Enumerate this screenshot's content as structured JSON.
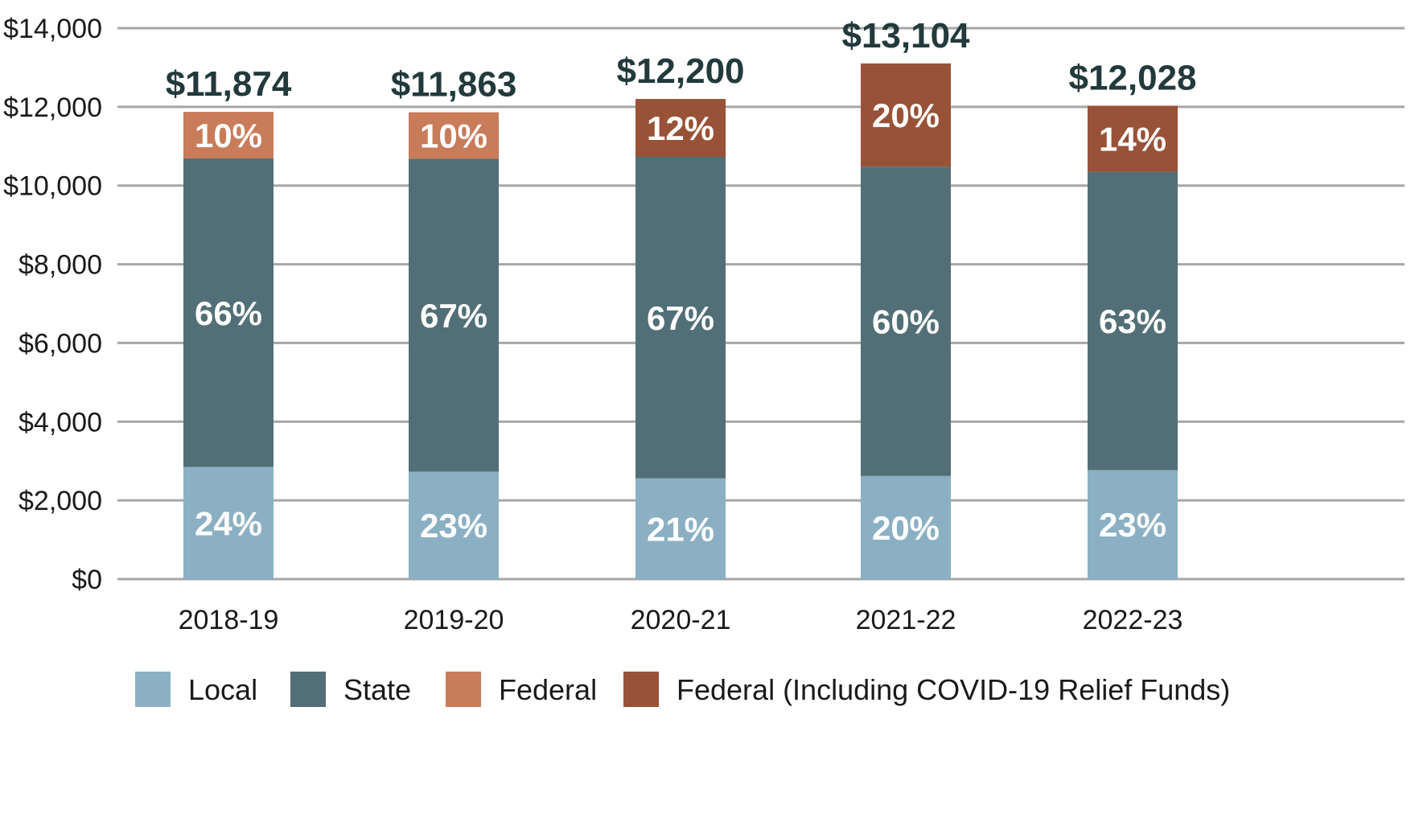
{
  "chart_data": {
    "type": "bar",
    "stacked": true,
    "categories": [
      "2018-19",
      "2019-20",
      "2020-21",
      "2021-22",
      "2022-23"
    ],
    "totals": [
      11874,
      11863,
      12200,
      13104,
      12028
    ],
    "total_labels": [
      "$11,874",
      "$11,863",
      "$12,200",
      "$13,104",
      "$12,028"
    ],
    "series": [
      {
        "name": "Local",
        "color": "#8cb0c3",
        "values": [
          2850,
          2730,
          2560,
          2620,
          2770
        ],
        "labels": [
          "24%",
          "23%",
          "21%",
          "20%",
          "23%"
        ]
      },
      {
        "name": "State",
        "color": "#526f77",
        "values": [
          7840,
          7950,
          8170,
          7860,
          7580
        ],
        "labels": [
          "66%",
          "67%",
          "67%",
          "60%",
          "63%"
        ]
      },
      {
        "name": "Federal",
        "color": "#c87c5a",
        "values": [
          1184,
          1183,
          0,
          0,
          0
        ],
        "labels": [
          "10%",
          "10%",
          "",
          "",
          ""
        ]
      },
      {
        "name": "Federal (Including COVID-19 Relief Funds)",
        "color": "#985238",
        "values": [
          0,
          0,
          1470,
          2624,
          1678
        ],
        "labels": [
          "",
          "",
          "12%",
          "20%",
          "14%"
        ]
      }
    ],
    "y_ticks": [
      0,
      2000,
      4000,
      6000,
      8000,
      10000,
      12000,
      14000
    ],
    "y_tick_labels": [
      "$0",
      "$2,000",
      "$4,000",
      "$6,000",
      "$8,000",
      "$10,000",
      "$12,000",
      "$14,000"
    ],
    "ylim": [
      0,
      14000
    ],
    "grid": true,
    "legend_position": "bottom",
    "title": "",
    "xlabel": "",
    "ylabel": ""
  }
}
